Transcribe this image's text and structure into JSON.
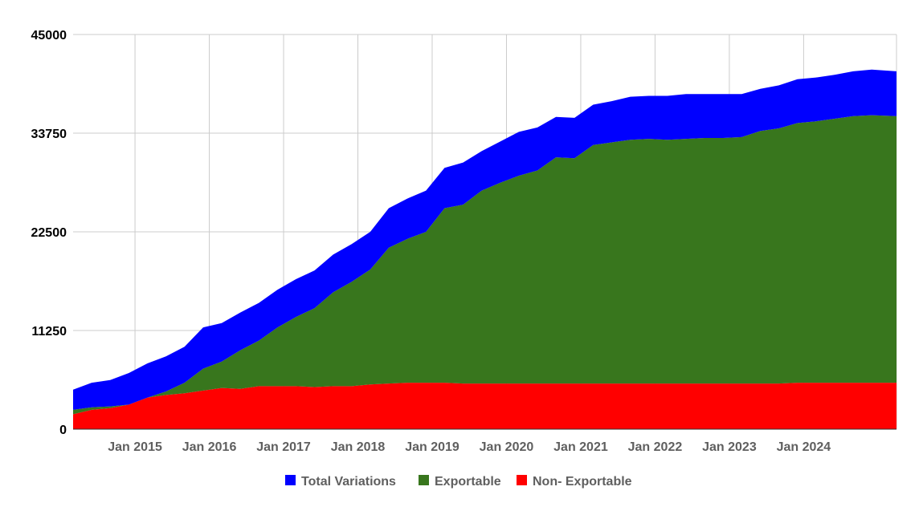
{
  "chart_data": {
    "type": "area",
    "stacked": true,
    "title": "",
    "xlabel": "",
    "ylabel": "",
    "ylim": [
      0,
      45000
    ],
    "y_ticks": [
      0,
      11250,
      22500,
      33750,
      45000
    ],
    "y_tick_labels": [
      "0",
      "11250",
      "22500",
      "33750",
      "45000"
    ],
    "xlim": [
      "2014-03",
      "2025-04"
    ],
    "x_ticks": [
      "2015-01",
      "2016-01",
      "2017-01",
      "2018-01",
      "2019-01",
      "2020-01",
      "2021-01",
      "2022-01",
      "2023-01",
      "2024-01"
    ],
    "x_tick_labels": [
      "Jan 2015",
      "Jan 2016",
      "Jan 2017",
      "Jan 2018",
      "Jan 2019",
      "Jan 2020",
      "Jan 2021",
      "Jan 2022",
      "Jan 2023",
      "Jan 2024"
    ],
    "grid": true,
    "legend_position": "bottom",
    "x": [
      "2014-03",
      "2014-06",
      "2014-09",
      "2014-12",
      "2015-03",
      "2015-06",
      "2015-09",
      "2015-12",
      "2016-03",
      "2016-06",
      "2016-09",
      "2016-12",
      "2017-03",
      "2017-06",
      "2017-09",
      "2017-12",
      "2018-03",
      "2018-06",
      "2018-09",
      "2018-12",
      "2019-03",
      "2019-06",
      "2019-09",
      "2019-12",
      "2020-03",
      "2020-06",
      "2020-09",
      "2020-12",
      "2021-03",
      "2021-06",
      "2021-09",
      "2021-12",
      "2022-03",
      "2022-06",
      "2022-09",
      "2022-12",
      "2023-03",
      "2023-06",
      "2023-09",
      "2023-12",
      "2024-03",
      "2024-06",
      "2024-09",
      "2024-12",
      "2025-04"
    ],
    "series": [
      {
        "name": "Non- Exportable",
        "color": "#ff0000",
        "values": [
          1700,
          2200,
          2400,
          2800,
          3600,
          3900,
          4100,
          4400,
          4700,
          4600,
          4900,
          4900,
          4900,
          4800,
          4900,
          4900,
          5100,
          5200,
          5300,
          5300,
          5300,
          5200,
          5200,
          5200,
          5200,
          5200,
          5200,
          5200,
          5200,
          5200,
          5200,
          5200,
          5200,
          5200,
          5200,
          5200,
          5200,
          5200,
          5200,
          5300,
          5300,
          5300,
          5300,
          5300,
          5300
        ]
      },
      {
        "name": "Exportable",
        "color": "#38761d",
        "values": [
          500,
          300,
          200,
          0,
          0,
          400,
          1200,
          2500,
          3000,
          4400,
          5200,
          6700,
          7900,
          9000,
          10700,
          11900,
          13100,
          15500,
          16400,
          17200,
          19900,
          20400,
          22000,
          22900,
          23700,
          24300,
          25800,
          25700,
          27200,
          27500,
          27800,
          27900,
          27800,
          27900,
          28000,
          28000,
          28100,
          28800,
          29100,
          29600,
          29800,
          30100,
          30400,
          30500,
          30400
        ]
      },
      {
        "name": "Total Variations",
        "color": "#0000ff",
        "values": [
          2300,
          2800,
          3000,
          3600,
          3900,
          4000,
          4100,
          4700,
          4400,
          4300,
          4300,
          4300,
          4300,
          4300,
          4300,
          4300,
          4300,
          4500,
          4600,
          4700,
          4600,
          4800,
          4500,
          4700,
          5000,
          4900,
          4600,
          4600,
          4600,
          4700,
          4900,
          4900,
          5000,
          5100,
          5000,
          5000,
          4900,
          4800,
          4900,
          5000,
          5000,
          5000,
          5100,
          5200,
          5100
        ]
      }
    ],
    "legend": [
      {
        "name": "Total Variations",
        "color": "#0000ff"
      },
      {
        "name": "Exportable",
        "color": "#38761d"
      },
      {
        "name": "Non- Exportable",
        "color": "#ff0000"
      }
    ]
  }
}
